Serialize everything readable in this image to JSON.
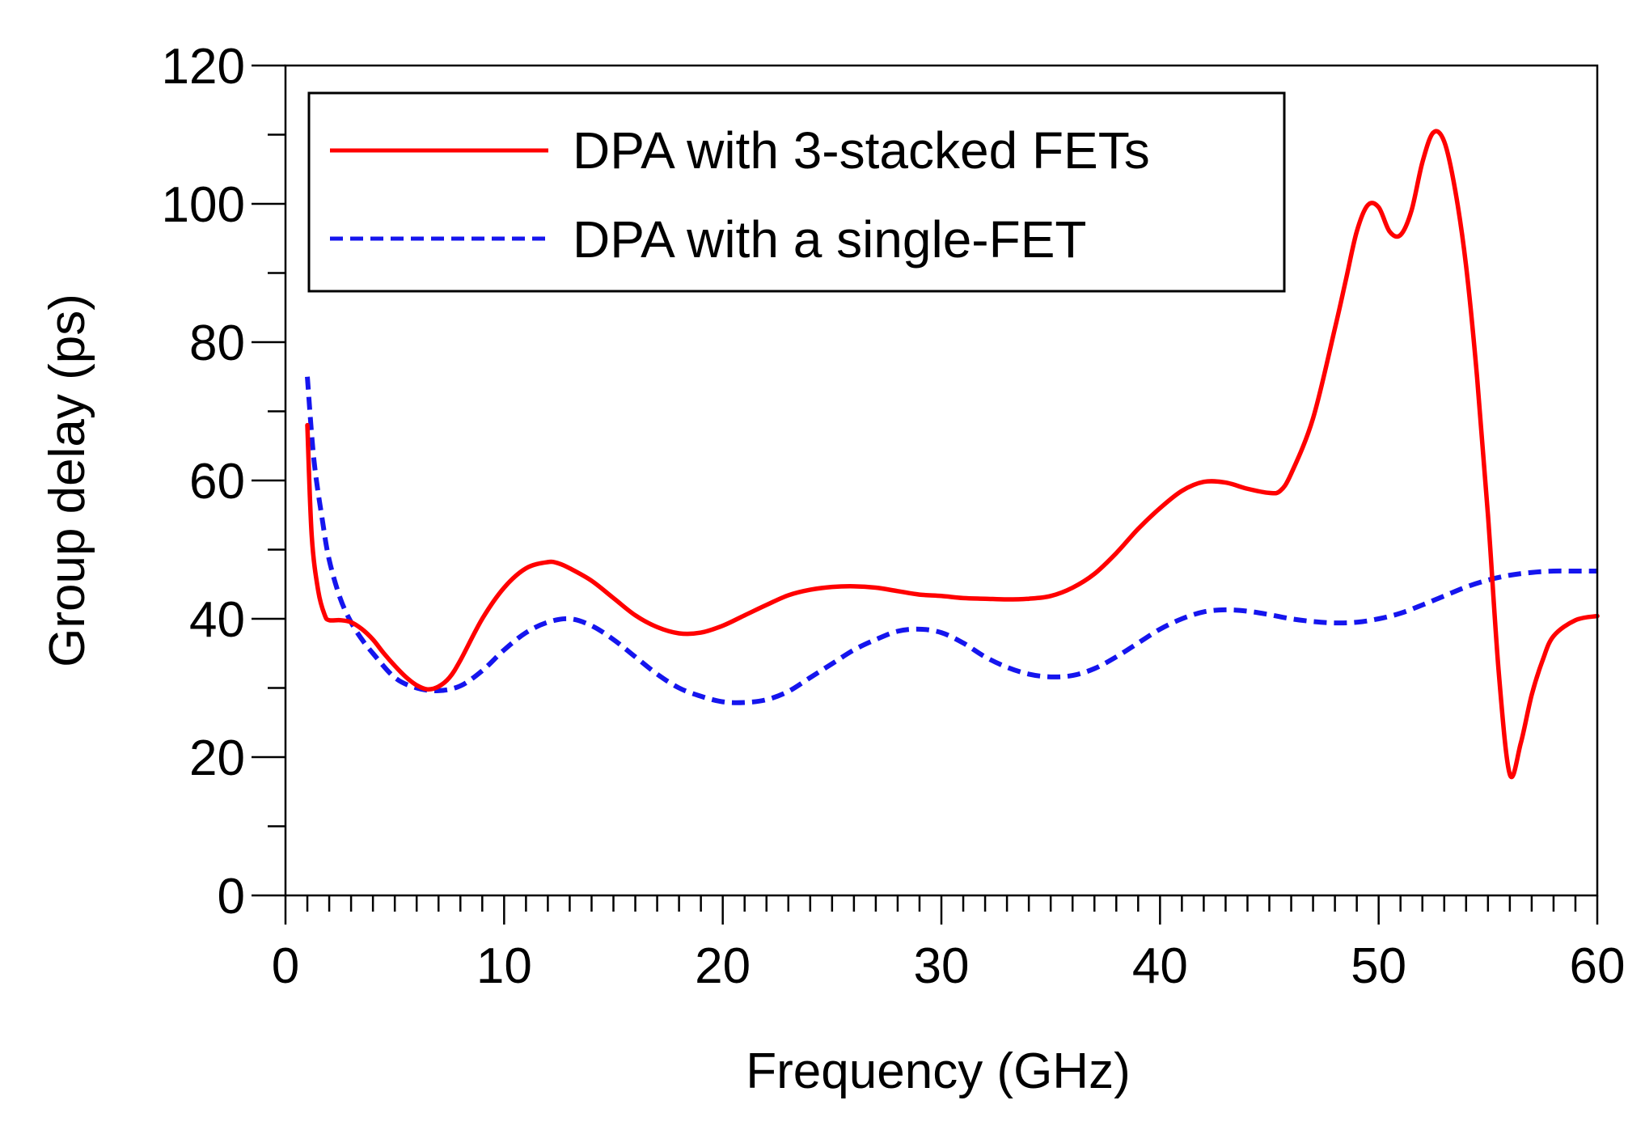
{
  "chart_data": {
    "type": "line",
    "title": "",
    "xlabel": "Frequency (GHz)",
    "ylabel": "Group delay (ps)",
    "xlim": [
      0,
      60
    ],
    "ylim": [
      0,
      120
    ],
    "xticks": [
      0,
      10,
      20,
      30,
      40,
      50,
      60
    ],
    "xtick_labels": [
      "0",
      "10",
      "20",
      "30",
      "40",
      "50",
      "60"
    ],
    "yticks": [
      0,
      20,
      40,
      60,
      80,
      100,
      120
    ],
    "ytick_labels": [
      "0",
      "20",
      "40",
      "60",
      "80",
      "100",
      "120"
    ],
    "x_minor_step": 1,
    "y_minor_step": 10,
    "grid": false,
    "legend_position": "top-left",
    "series": [
      {
        "name": "DPA with 3-stacked FETs",
        "color": "#ff0000",
        "style": "solid",
        "x": [
          1,
          1.2,
          1.5,
          1.8,
          2,
          2.5,
          3,
          3.5,
          4,
          4.5,
          5,
          5.5,
          6,
          6.5,
          7,
          7.5,
          8,
          9,
          10,
          11,
          12,
          12.5,
          13,
          14,
          15,
          16,
          17,
          18,
          19,
          20,
          21,
          22,
          23,
          24,
          25,
          26,
          27,
          28,
          29,
          30,
          31,
          32,
          33,
          34,
          35,
          36,
          37,
          38,
          39,
          40,
          41,
          42,
          43,
          44,
          45,
          45.5,
          46,
          47,
          48,
          48.5,
          49,
          49.5,
          50,
          50.5,
          51,
          51.5,
          52,
          52.5,
          53,
          53.5,
          54,
          54.5,
          55,
          55.5,
          56,
          56.5,
          57,
          57.5,
          58,
          59,
          60
        ],
        "y": [
          68,
          52,
          44,
          40.5,
          39.8,
          39.8,
          39.5,
          38.5,
          37,
          35,
          33.2,
          31.6,
          30.4,
          29.8,
          30.2,
          31.5,
          34,
          40,
          44.5,
          47.3,
          48.2,
          48,
          47.3,
          45.5,
          43,
          40.5,
          38.8,
          37.9,
          38,
          39,
          40.5,
          42,
          43.4,
          44.2,
          44.6,
          44.7,
          44.5,
          44,
          43.5,
          43.3,
          43,
          42.9,
          42.8,
          42.9,
          43.3,
          44.5,
          46.5,
          49.5,
          53,
          56,
          58.5,
          59.8,
          59.7,
          58.8,
          58.2,
          58.5,
          61,
          69,
          82,
          89,
          96,
          99.8,
          99.5,
          96,
          95.5,
          99,
          106,
          110.3,
          109,
          102,
          91,
          75,
          55,
          32,
          17.5,
          22,
          29,
          34,
          37.5,
          39.8,
          40.4
        ],
        "points": [
          [
            1,
            68
          ],
          [
            1.2,
            52
          ],
          [
            1.5,
            44
          ],
          [
            1.8,
            40.5
          ],
          [
            2,
            39.8
          ],
          [
            2.5,
            39.8
          ],
          [
            3,
            39.5
          ],
          [
            3.5,
            38.5
          ],
          [
            4,
            37
          ],
          [
            4.5,
            35
          ],
          [
            5,
            33.2
          ],
          [
            5.5,
            31.6
          ],
          [
            6,
            30.4
          ],
          [
            6.5,
            29.8
          ],
          [
            7,
            30.2
          ],
          [
            7.5,
            31.5
          ],
          [
            8,
            34
          ],
          [
            9,
            40
          ],
          [
            10,
            44.5
          ],
          [
            11,
            47.3
          ],
          [
            12,
            48.2
          ],
          [
            12.5,
            48
          ],
          [
            13,
            47.3
          ],
          [
            14,
            45.5
          ],
          [
            15,
            43
          ],
          [
            16,
            40.5
          ],
          [
            17,
            38.8
          ],
          [
            18,
            37.9
          ],
          [
            19,
            38
          ],
          [
            20,
            39
          ],
          [
            21,
            40.5
          ],
          [
            22,
            42
          ],
          [
            23,
            43.4
          ],
          [
            24,
            44.2
          ],
          [
            25,
            44.6
          ],
          [
            26,
            44.7
          ],
          [
            27,
            44.5
          ],
          [
            28,
            44
          ],
          [
            29,
            43.5
          ],
          [
            30,
            43.3
          ],
          [
            31,
            43
          ],
          [
            32,
            42.9
          ],
          [
            33,
            42.8
          ],
          [
            34,
            42.9
          ],
          [
            35,
            43.3
          ],
          [
            36,
            44.5
          ],
          [
            37,
            46.5
          ],
          [
            38,
            49.5
          ],
          [
            39,
            53
          ],
          [
            40,
            56
          ],
          [
            41,
            58.5
          ],
          [
            42,
            59.8
          ],
          [
            43,
            59.7
          ],
          [
            44,
            58.8
          ],
          [
            45,
            58.2
          ],
          [
            45.5,
            58.5
          ],
          [
            46,
            61
          ],
          [
            47,
            69
          ],
          [
            48,
            82
          ],
          [
            48.5,
            89
          ],
          [
            49,
            96
          ],
          [
            49.5,
            99.8
          ],
          [
            50,
            99.5
          ],
          [
            50.5,
            96
          ],
          [
            51,
            95.5
          ],
          [
            51.5,
            99
          ],
          [
            52,
            106
          ],
          [
            52.5,
            110.3
          ],
          [
            53,
            109
          ],
          [
            53.5,
            102
          ],
          [
            54,
            91
          ],
          [
            54.5,
            75
          ],
          [
            55,
            55
          ],
          [
            55.5,
            32
          ],
          [
            56,
            17.5
          ],
          [
            56.5,
            22
          ],
          [
            57,
            29
          ],
          [
            57.5,
            34
          ],
          [
            58,
            37.5
          ],
          [
            59,
            39.8
          ],
          [
            60,
            40.4
          ]
        ]
      },
      {
        "name": "DPA with a single-FET",
        "color": "#1515ee",
        "style": "dashed",
        "x": [
          1,
          1.3,
          1.7,
          2,
          2.5,
          3,
          3.5,
          4,
          5,
          6,
          7,
          8,
          9,
          10,
          11,
          12,
          13,
          14,
          15,
          16,
          17,
          18,
          19,
          20,
          21,
          22,
          23,
          24,
          25,
          26,
          27,
          28,
          29,
          30,
          31,
          32,
          33,
          34,
          35,
          36,
          37,
          38,
          39,
          40,
          41,
          42,
          43,
          44,
          45,
          46,
          47,
          48,
          49,
          50,
          51,
          52,
          53,
          54,
          55,
          56,
          57,
          58,
          59,
          60
        ],
        "y": [
          75,
          63,
          54,
          48.5,
          43,
          39.5,
          37,
          35,
          31.5,
          30,
          29.6,
          30.3,
          32.5,
          35.5,
          38,
          39.5,
          40,
          39,
          37,
          34.5,
          32,
          30,
          28.8,
          28,
          27.9,
          28.3,
          29.5,
          31.5,
          33.5,
          35.5,
          37,
          38.2,
          38.5,
          38,
          36.5,
          34.5,
          33,
          32,
          31.6,
          31.8,
          32.8,
          34.5,
          36.5,
          38.5,
          40,
          41,
          41.3,
          41.1,
          40.6,
          40,
          39.6,
          39.4,
          39.5,
          40,
          40.8,
          42,
          43.3,
          44.6,
          45.6,
          46.3,
          46.7,
          46.9,
          46.9,
          46.9
        ],
        "points": [
          [
            1,
            75
          ],
          [
            1.3,
            63
          ],
          [
            1.7,
            54
          ],
          [
            2,
            48.5
          ],
          [
            2.5,
            43
          ],
          [
            3,
            39.5
          ],
          [
            3.5,
            37
          ],
          [
            4,
            35
          ],
          [
            5,
            31.5
          ],
          [
            6,
            30
          ],
          [
            7,
            29.6
          ],
          [
            8,
            30.3
          ],
          [
            9,
            32.5
          ],
          [
            10,
            35.5
          ],
          [
            11,
            38
          ],
          [
            12,
            39.5
          ],
          [
            13,
            40
          ],
          [
            14,
            39
          ],
          [
            15,
            37
          ],
          [
            16,
            34.5
          ],
          [
            17,
            32
          ],
          [
            18,
            30
          ],
          [
            19,
            28.8
          ],
          [
            20,
            28
          ],
          [
            21,
            27.9
          ],
          [
            22,
            28.3
          ],
          [
            23,
            29.5
          ],
          [
            24,
            31.5
          ],
          [
            25,
            33.5
          ],
          [
            26,
            35.5
          ],
          [
            27,
            37
          ],
          [
            28,
            38.2
          ],
          [
            29,
            38.5
          ],
          [
            30,
            38
          ],
          [
            31,
            36.5
          ],
          [
            32,
            34.5
          ],
          [
            33,
            33
          ],
          [
            34,
            32
          ],
          [
            35,
            31.6
          ],
          [
            36,
            31.8
          ],
          [
            37,
            32.8
          ],
          [
            38,
            34.5
          ],
          [
            39,
            36.5
          ],
          [
            40,
            38.5
          ],
          [
            41,
            40
          ],
          [
            42,
            41
          ],
          [
            43,
            41.3
          ],
          [
            44,
            41.1
          ],
          [
            45,
            40.6
          ],
          [
            46,
            40
          ],
          [
            47,
            39.6
          ],
          [
            48,
            39.4
          ],
          [
            49,
            39.5
          ],
          [
            50,
            40
          ],
          [
            51,
            40.8
          ],
          [
            52,
            42
          ],
          [
            53,
            43.3
          ],
          [
            54,
            44.6
          ],
          [
            55,
            45.6
          ],
          [
            56,
            46.3
          ],
          [
            57,
            46.7
          ],
          [
            58,
            46.9
          ],
          [
            59,
            46.9
          ],
          [
            60,
            46.9
          ]
        ]
      }
    ]
  }
}
